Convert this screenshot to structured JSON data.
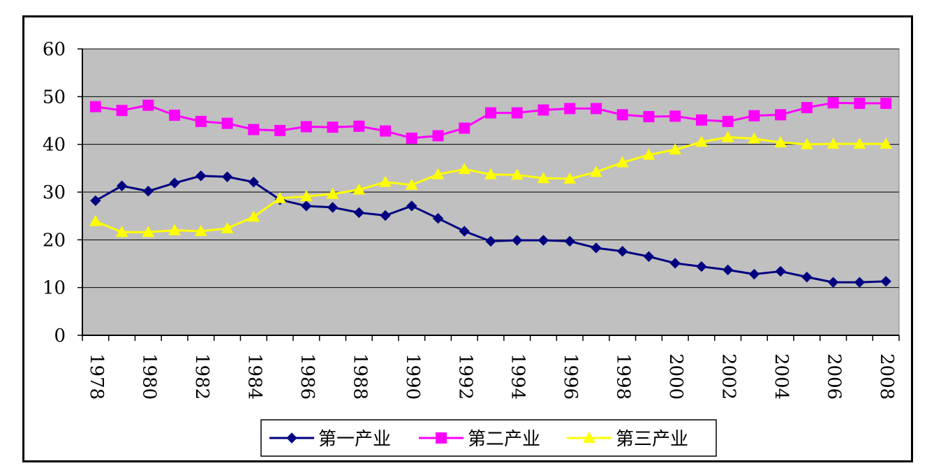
{
  "chart_data": {
    "type": "line",
    "title": "",
    "xlabel": "",
    "ylabel": "",
    "ylim": [
      0,
      60
    ],
    "yticks": [
      0,
      10,
      20,
      30,
      40,
      50,
      60
    ],
    "x": [
      1978,
      1979,
      1980,
      1981,
      1982,
      1983,
      1984,
      1985,
      1986,
      1987,
      1988,
      1989,
      1990,
      1991,
      1992,
      1993,
      1994,
      1995,
      1996,
      1997,
      1998,
      1999,
      2000,
      2001,
      2002,
      2003,
      2004,
      2005,
      2006,
      2007,
      2008
    ],
    "xtick_labels": [
      "1978",
      "1980",
      "1982",
      "1984",
      "1986",
      "1988",
      "1990",
      "1992",
      "1994",
      "1996",
      "1998",
      "2000",
      "2002",
      "2004",
      "2006",
      "2008"
    ],
    "grid": true,
    "legend_position": "bottom",
    "plot_background": "#c0c0c0",
    "series": [
      {
        "name": "第一产业",
        "color": "#000080",
        "marker": "diamond",
        "values": [
          28.2,
          31.3,
          30.2,
          31.9,
          33.4,
          33.2,
          32.1,
          28.4,
          27.1,
          26.8,
          25.7,
          25.1,
          27.1,
          24.5,
          21.8,
          19.7,
          19.9,
          19.9,
          19.7,
          18.3,
          17.6,
          16.5,
          15.1,
          14.4,
          13.7,
          12.8,
          13.4,
          12.2,
          11.1,
          11.1,
          11.3
        ]
      },
      {
        "name": "第二产业",
        "color": "#ff00ff",
        "marker": "square",
        "values": [
          47.9,
          47.1,
          48.2,
          46.1,
          44.8,
          44.4,
          43.1,
          42.9,
          43.7,
          43.6,
          43.8,
          42.8,
          41.3,
          41.8,
          43.4,
          46.6,
          46.6,
          47.2,
          47.5,
          47.5,
          46.2,
          45.8,
          45.9,
          45.1,
          44.8,
          46.0,
          46.2,
          47.7,
          48.7,
          48.6,
          48.6
        ]
      },
      {
        "name": "第三产业",
        "color": "#ffff00",
        "marker": "triangle",
        "values": [
          23.9,
          21.6,
          21.6,
          22.0,
          21.8,
          22.4,
          24.8,
          28.7,
          29.1,
          29.6,
          30.5,
          32.1,
          31.5,
          33.7,
          34.8,
          33.7,
          33.6,
          32.9,
          32.8,
          34.2,
          36.2,
          37.8,
          38.9,
          40.5,
          41.5,
          41.2,
          40.4,
          40.0,
          40.1,
          40.1,
          40.1
        ]
      }
    ]
  }
}
